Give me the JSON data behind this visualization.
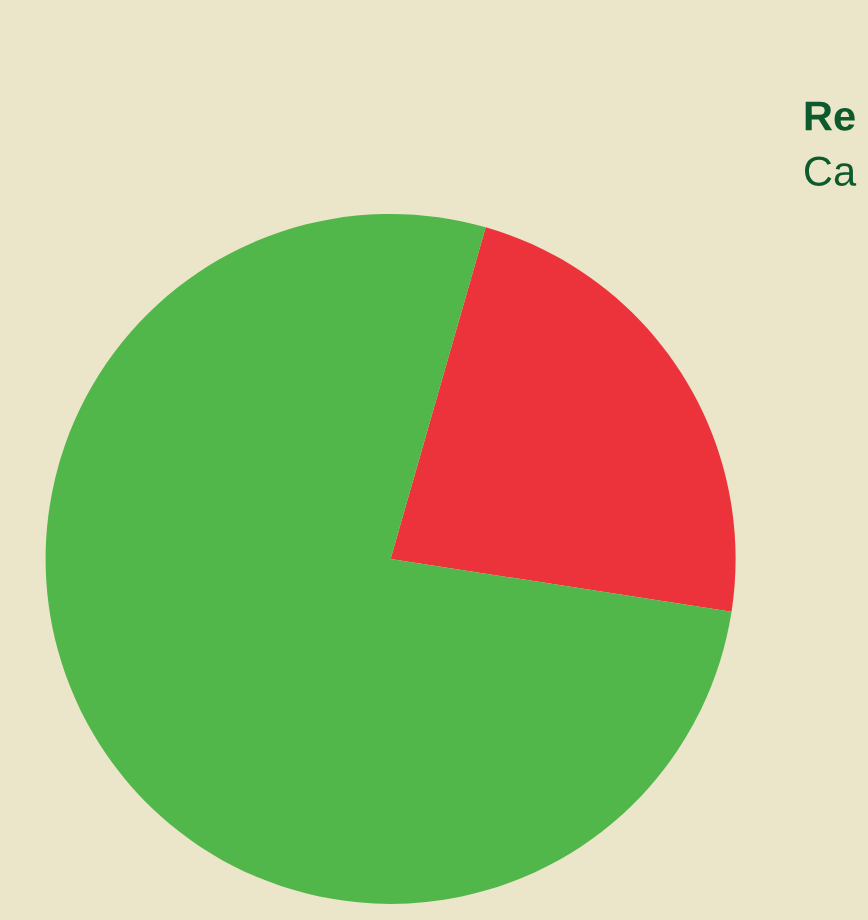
{
  "chart_data": {
    "type": "pie",
    "categories": [
      null,
      null
    ],
    "values": [
      23,
      77
    ],
    "colors": [
      "#ec333b",
      "#52b74a"
    ],
    "annotations": [
      "Re",
      "Ca"
    ]
  }
}
